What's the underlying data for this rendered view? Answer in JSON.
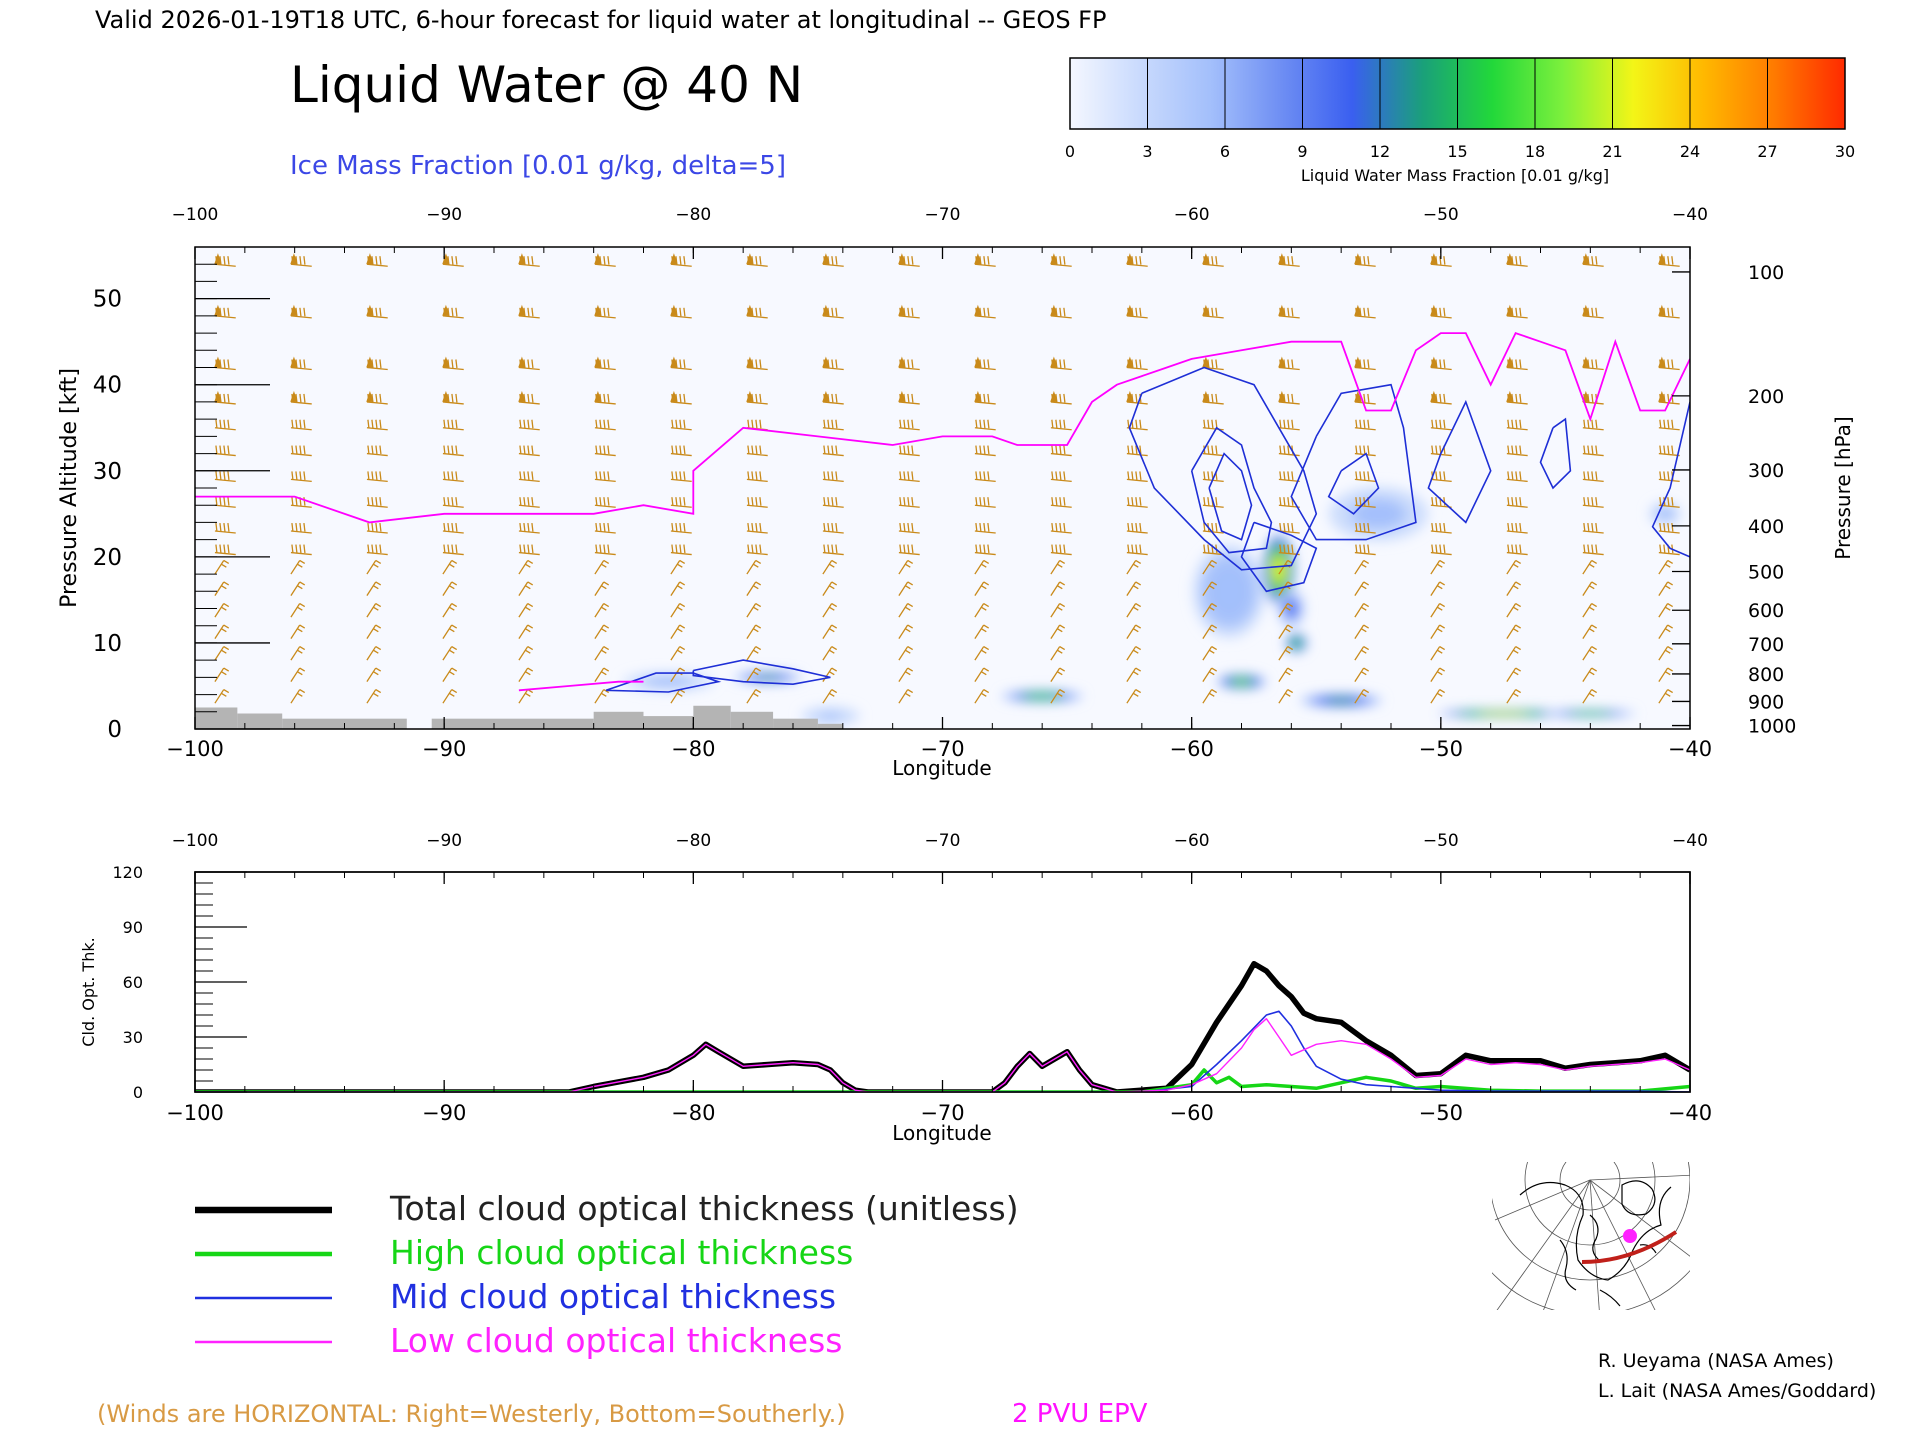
{
  "header": {
    "valid_line": "Valid 2026-01-19T18 UTC, 6-hour forecast for liquid water at longitudinal -- GEOS FP",
    "main_title": "Liquid Water @ 40 N",
    "subtitle": "Ice Mass Fraction [0.01 g/kg, delta=5]"
  },
  "colorbar": {
    "label": "Liquid Water Mass Fraction [0.01 g/kg]",
    "ticks": [
      "0",
      "3",
      "6",
      "9",
      "12",
      "15",
      "18",
      "21",
      "24",
      "27",
      "30"
    ],
    "colors": [
      "#f4f7ff",
      "#c9dafd",
      "#a3bffb",
      "#6e8ef3",
      "#3a5ff0",
      "#1aa07a",
      "#22d83a",
      "#7df03c",
      "#f3f517",
      "#ffb800",
      "#ff7a00",
      "#ff2a00"
    ]
  },
  "colors": {
    "epv": "#ff00ff",
    "ice_contour": "#1e2fd6",
    "wind_barb": "#c98a1a",
    "total": "#000000",
    "high": "#16d616",
    "mid": "#2030e0",
    "low": "#ff22ff",
    "terrain": "#b4b4b4"
  },
  "chart_data": [
    {
      "type": "heatmap",
      "title": "Liquid Water @ 40 N",
      "xlabel": "Longitude",
      "ylabel_left": "Pressure Altitude [kft]",
      "ylabel_right": "Pressure [hPa]",
      "xlim": [
        -100,
        -40
      ],
      "ylim": [
        0,
        56
      ],
      "x_ticks": [
        "-100",
        "-90",
        "-80",
        "-70",
        "-60",
        "-50",
        "-40"
      ],
      "y_ticks": [
        "0",
        "10",
        "20",
        "30",
        "40",
        "50"
      ],
      "pressure_ticks": [
        {
          "label": "100",
          "kft": 53.1
        },
        {
          "label": "200",
          "kft": 38.7
        },
        {
          "label": "300",
          "kft": 30.1
        },
        {
          "label": "400",
          "kft": 23.6
        },
        {
          "label": "500",
          "kft": 18.3
        },
        {
          "label": "600",
          "kft": 13.8
        },
        {
          "label": "700",
          "kft": 9.9
        },
        {
          "label": "800",
          "kft": 6.4
        },
        {
          "label": "900",
          "kft": 3.2
        },
        {
          "label": "1000",
          "kft": 0.4
        }
      ],
      "liquid_water_blobs": [
        {
          "lon": -56.5,
          "kft": 18.5,
          "rlon": 0.7,
          "rkft": 4.5,
          "peak": 21
        },
        {
          "lon": -56.0,
          "kft": 14.0,
          "rlon": 0.6,
          "rkft": 2.5,
          "peak": 9
        },
        {
          "lon": -55.8,
          "kft": 10.0,
          "rlon": 0.5,
          "rkft": 1.3,
          "peak": 16
        },
        {
          "lon": -58.0,
          "kft": 5.5,
          "rlon": 1.1,
          "rkft": 1.0,
          "peak": 17
        },
        {
          "lon": -54.0,
          "kft": 3.3,
          "rlon": 1.8,
          "rkft": 0.9,
          "peak": 13
        },
        {
          "lon": -66.0,
          "kft": 3.8,
          "rlon": 1.8,
          "rkft": 0.8,
          "peak": 14
        },
        {
          "lon": -77.0,
          "kft": 6.0,
          "rlon": 1.5,
          "rkft": 0.7,
          "peak": 12
        },
        {
          "lon": -47.5,
          "kft": 1.8,
          "rlon": 2.8,
          "rkft": 0.5,
          "peak": 20
        },
        {
          "lon": -44.0,
          "kft": 1.8,
          "rlon": 2.0,
          "rkft": 0.5,
          "peak": 14
        },
        {
          "lon": -58.5,
          "kft": 16.0,
          "rlon": 1.6,
          "rkft": 6.0,
          "peak": 5
        },
        {
          "lon": -52.5,
          "kft": 25.0,
          "rlon": 2.2,
          "rkft": 3.5,
          "peak": 4
        },
        {
          "lon": -41.0,
          "kft": 25.0,
          "rlon": 0.7,
          "rkft": 1.5,
          "peak": 4
        },
        {
          "lon": -81.0,
          "kft": 5.5,
          "rlon": 2.0,
          "rkft": 1.2,
          "peak": 4
        },
        {
          "lon": -74.5,
          "kft": 1.5,
          "rlon": 1.3,
          "rkft": 1.2,
          "peak": 3
        }
      ],
      "epv_2pvu_line": {
        "lon": [
          -100,
          -96,
          -93,
          -90,
          -88,
          -86,
          -84,
          -82,
          -80,
          -80,
          -78,
          -75,
          -72,
          -70,
          -68,
          -67,
          -65,
          -64,
          -63,
          -62,
          -61,
          -60,
          -58,
          -56,
          -54,
          -53,
          -52,
          -51,
          -50.5,
          -50,
          -49,
          -48,
          -47,
          -46,
          -45,
          -44,
          -43,
          -42,
          -41,
          -40
        ],
        "kft": [
          27,
          27,
          24,
          25,
          25,
          25,
          25,
          26,
          25,
          30,
          35,
          34,
          33,
          34,
          34,
          33,
          33,
          38,
          40,
          41,
          42,
          43,
          44,
          45,
          45,
          37,
          37,
          44,
          45,
          46,
          46,
          40,
          46,
          45,
          44,
          36,
          45,
          37,
          37,
          43
        ]
      },
      "epv_low_line": {
        "lon": [
          -87,
          -85,
          -83,
          -82
        ],
        "kft": [
          4.5,
          5,
          5.5,
          5.5
        ]
      },
      "ice_contours": [
        {
          "lon": [
            -62,
            -59.5,
            -57.5,
            -56.5,
            -55.5,
            -55,
            -56,
            -58,
            -59.5,
            -61.5,
            -62.5,
            -62
          ],
          "kft": [
            39,
            42,
            40,
            35,
            30,
            25,
            19,
            18.5,
            22,
            28,
            35,
            39
          ]
        },
        {
          "lon": [
            -60,
            -59,
            -58,
            -57.5,
            -56.8,
            -57,
            -58.5,
            -59.5,
            -60
          ],
          "kft": [
            30,
            35,
            33,
            28,
            24,
            21,
            20.5,
            24,
            30
          ]
        },
        {
          "lon": [
            -59.3,
            -58.7,
            -58,
            -57.6,
            -58,
            -58.8,
            -59.3
          ],
          "kft": [
            28,
            32,
            30,
            26,
            22,
            23,
            28
          ]
        },
        {
          "lon": [
            -57.5,
            -56,
            -55,
            -55.5,
            -57,
            -58,
            -57.5
          ],
          "kft": [
            24,
            22.5,
            21,
            17,
            16,
            20,
            24
          ]
        },
        {
          "lon": [
            -55,
            -54,
            -52,
            -51.5,
            -51,
            -53,
            -55,
            -56,
            -55
          ],
          "kft": [
            34,
            39,
            40,
            35,
            24,
            22,
            22,
            27,
            34
          ]
        },
        {
          "lon": [
            -54,
            -53,
            -52.5,
            -53.5,
            -54.5,
            -54
          ],
          "kft": [
            30,
            32,
            28,
            25,
            27,
            30
          ]
        },
        {
          "lon": [
            -50,
            -49,
            -48,
            -49,
            -50.5,
            -50
          ],
          "kft": [
            32,
            38,
            30,
            24,
            28,
            32
          ]
        },
        {
          "lon": [
            -45.5,
            -45,
            -44.8,
            -45.5,
            -46,
            -45.5
          ],
          "kft": [
            35,
            36,
            30,
            28,
            31,
            35
          ]
        },
        {
          "lon": [
            -40,
            -40.8,
            -41.5,
            -40.8,
            -40
          ],
          "kft": [
            38,
            28,
            23.5,
            21,
            20
          ]
        },
        {
          "lon": [
            -83,
            -81.5,
            -80,
            -79,
            -81,
            -83.5,
            -83
          ],
          "kft": [
            5,
            6.5,
            6.5,
            5.5,
            4.3,
            4.5,
            5
          ]
        },
        {
          "lon": [
            -80,
            -78,
            -76,
            -74.5,
            -76,
            -78,
            -80,
            -80
          ],
          "kft": [
            6.8,
            8,
            7,
            6,
            5.2,
            5.5,
            6.2,
            6.8
          ]
        }
      ],
      "terrain": [
        {
          "lon0": -100,
          "lon1": -98.3,
          "kft": 2.5
        },
        {
          "lon0": -98.3,
          "lon1": -96.5,
          "kft": 1.8
        },
        {
          "lon0": -96.5,
          "lon1": -91.5,
          "kft": 1.2
        },
        {
          "lon0": -90.5,
          "lon1": -84,
          "kft": 1.2
        },
        {
          "lon0": -84,
          "lon1": -82,
          "kft": 2.0
        },
        {
          "lon0": -82,
          "lon1": -80,
          "kft": 1.5
        },
        {
          "lon0": -80,
          "lon1": -78.5,
          "kft": 2.7
        },
        {
          "lon0": -78.5,
          "lon1": -76.8,
          "kft": 2.0
        },
        {
          "lon0": -76.8,
          "lon1": -75,
          "kft": 1.2
        },
        {
          "lon0": -75,
          "lon1": -74,
          "kft": 0.6
        }
      ]
    },
    {
      "type": "line",
      "xlabel": "Longitude",
      "ylabel": "Cld. Opt. Thk.",
      "xlim": [
        -100,
        -40
      ],
      "ylim": [
        0,
        120
      ],
      "x_ticks": [
        "-100",
        "-90",
        "-80",
        "-70",
        "-60",
        "-50",
        "-40"
      ],
      "y_ticks": [
        "0",
        "30",
        "60",
        "90",
        "120"
      ],
      "series": [
        {
          "name": "Total cloud optical thickness (unitless)",
          "key": "total",
          "x": [
            -100,
            -85,
            -84,
            -82,
            -81,
            -80,
            -79.5,
            -79,
            -78,
            -77,
            -76,
            -75,
            -74.5,
            -74,
            -73.5,
            -73,
            -68,
            -67.5,
            -67,
            -66.5,
            -66,
            -65.5,
            -65,
            -64.5,
            -64,
            -63,
            -61,
            -60,
            -59,
            -58,
            -57.5,
            -57,
            -56.5,
            -56,
            -55.5,
            -55,
            -54,
            -53,
            -52,
            -51,
            -50,
            -49,
            -48,
            -47,
            -46,
            -45,
            -44,
            -43,
            -42,
            -41,
            -40
          ],
          "y": [
            0,
            0,
            3,
            8,
            12,
            20,
            26,
            22,
            14,
            15,
            16,
            15,
            12,
            5,
            1,
            0,
            0,
            5,
            14,
            21,
            14,
            18,
            22,
            12,
            4,
            0,
            2,
            15,
            38,
            58,
            70,
            66,
            58,
            52,
            43,
            40,
            38,
            28,
            20,
            9,
            10,
            20,
            17,
            17,
            17,
            13,
            15,
            16,
            17,
            20,
            12
          ]
        },
        {
          "name": "High cloud optical thickness",
          "key": "high",
          "x": [
            -100,
            -62,
            -60,
            -59.5,
            -59,
            -58.5,
            -58,
            -57,
            -56,
            -55,
            -54,
            -53,
            -52,
            -51,
            -50,
            -48,
            -46,
            -44,
            -42,
            -40
          ],
          "y": [
            0,
            0,
            4,
            12,
            5,
            8,
            3,
            4,
            3,
            2,
            5,
            8,
            6,
            2,
            3,
            1,
            0.5,
            0.5,
            0.5,
            3
          ]
        },
        {
          "name": "Mid cloud optical thickness",
          "key": "mid",
          "x": [
            -100,
            -62,
            -60,
            -59,
            -58,
            -57.5,
            -57,
            -56.5,
            -56,
            -55.5,
            -55,
            -54,
            -53,
            -52,
            -51,
            -50,
            -48,
            -45,
            -42,
            -40
          ],
          "y": [
            0,
            0,
            3,
            15,
            28,
            35,
            42,
            44,
            36,
            24,
            14,
            7,
            4,
            3,
            2,
            1,
            0.5,
            0.5,
            0.5,
            0
          ]
        },
        {
          "name": "Low cloud optical thickness",
          "key": "low",
          "x": [
            -100,
            -85,
            -84,
            -82,
            -81,
            -80,
            -79.5,
            -79,
            -78,
            -77,
            -76,
            -75,
            -74.5,
            -74,
            -73.5,
            -73,
            -68,
            -67.5,
            -67,
            -66.5,
            -66,
            -65.5,
            -65,
            -64.5,
            -64,
            -63,
            -61,
            -60,
            -59,
            -58,
            -57.5,
            -57,
            -56.5,
            -56,
            -55,
            -54,
            -53,
            -52,
            -51,
            -50,
            -49,
            -48,
            -47,
            -46,
            -45,
            -44,
            -43,
            -42,
            -41,
            -40
          ],
          "y": [
            0,
            0,
            3,
            8,
            12,
            20,
            26,
            22,
            14,
            15,
            16,
            15,
            12,
            5,
            1,
            0,
            0,
            5,
            14,
            21,
            14,
            18,
            22,
            12,
            4,
            0,
            1,
            4,
            10,
            24,
            34,
            40,
            30,
            20,
            26,
            28,
            26,
            18,
            8,
            9,
            18,
            15,
            16,
            15,
            12,
            14,
            15,
            16,
            18,
            12
          ]
        }
      ]
    }
  ],
  "legend": {
    "items": [
      {
        "key": "total",
        "label": "Total cloud optical thickness (unitless)"
      },
      {
        "key": "high",
        "label": "High cloud optical thickness"
      },
      {
        "key": "mid",
        "label": "Mid cloud optical thickness"
      },
      {
        "key": "low",
        "label": "Low cloud optical thickness"
      }
    ]
  },
  "footer": {
    "winds_note": "(Winds are HORIZONTAL: Right=Westerly, Bottom=Southerly.)",
    "epv_label": "2 PVU EPV",
    "credit1": "R. Ueyama (NASA Ames)",
    "credit2": "L. Lait (NASA Ames/Goddard)"
  },
  "inset_map": {
    "icon": "north-polar-map-icon"
  }
}
